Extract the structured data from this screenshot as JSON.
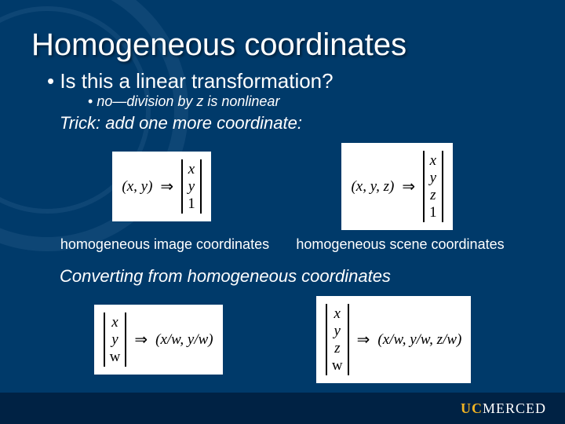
{
  "colors": {
    "background": "#003a6a",
    "footer_bg": "#002244",
    "text": "#ffffff",
    "formula_bg": "#ffffff",
    "formula_text": "#000000",
    "seal_stroke": "#3a6a96",
    "logo_gold": "#f0b323"
  },
  "title": "Homogeneous coordinates",
  "bullet1": "Is this a linear transformation?",
  "bullet2": "no—division by z is nonlinear",
  "trick": "Trick:  add one more coordinate:",
  "formula_2d": {
    "lhs": "(x, y)",
    "arrow": "⇒",
    "vector": [
      "x",
      "y",
      "1"
    ]
  },
  "formula_3d": {
    "lhs": "(x, y, z)",
    "arrow": "⇒",
    "vector": [
      "x",
      "y",
      "z",
      "1"
    ]
  },
  "caption_image": "homogeneous image coordinates",
  "caption_scene": "homogeneous scene coordinates",
  "convert_label": "Converting ",
  "convert_rest": "from homogeneous coordinates",
  "back_2d": {
    "vector": [
      "x",
      "y",
      "w"
    ],
    "arrow": "⇒",
    "rhs": "(x/w, y/w)"
  },
  "back_3d": {
    "vector": [
      "x",
      "y",
      "z",
      "w"
    ],
    "arrow": "⇒",
    "rhs": "(x/w, y/w, z/w)"
  },
  "logo": {
    "uc": "UC",
    "merced": "MERCED"
  }
}
